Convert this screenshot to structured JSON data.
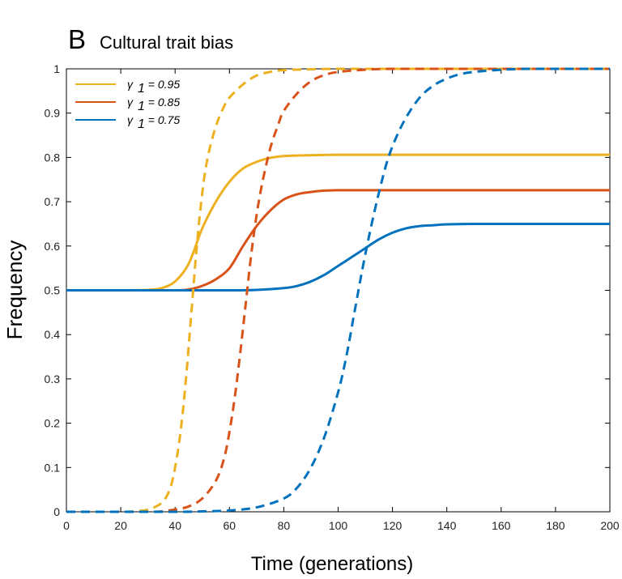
{
  "panel_letter": "B",
  "panel_title": "Cultural trait bias",
  "colors": {
    "gamma_095": "#EDB120",
    "gamma_085": "#D95319",
    "gamma_075": "#0072BD",
    "axes": "#000000",
    "background": "#ffffff"
  },
  "chart_data": {
    "type": "line",
    "title": "Cultural trait bias",
    "xlabel": "Time (generations)",
    "ylabel": "Frequency",
    "xlim": [
      0,
      200
    ],
    "ylim": [
      0,
      1
    ],
    "xticks": [
      0,
      20,
      40,
      60,
      80,
      100,
      120,
      140,
      160,
      180,
      200
    ],
    "yticks": [
      0,
      0.1,
      0.2,
      0.3,
      0.4,
      0.5,
      0.6,
      0.7,
      0.8,
      0.9,
      1
    ],
    "xtick_labels": [
      "0",
      "20",
      "40",
      "60",
      "80",
      "100",
      "120",
      "140",
      "160",
      "180",
      "200"
    ],
    "ytick_labels": [
      "0",
      "0.1",
      "0.2",
      "0.3",
      "0.4",
      "0.5",
      "0.6",
      "0.7",
      "0.8",
      "0.9",
      "1"
    ],
    "grid": false,
    "legend_position": "top-left",
    "legend": [
      {
        "greek": "γ",
        "sub": "1",
        "text": " = 0.95",
        "color_key": "gamma_095"
      },
      {
        "greek": "γ",
        "sub": "1",
        "text": " = 0.85",
        "color_key": "gamma_085"
      },
      {
        "greek": "γ",
        "sub": "1",
        "text": " = 0.75",
        "color_key": "gamma_075"
      }
    ],
    "series": [
      {
        "name": "γ1 = 0.95",
        "style": "solid",
        "color_key": "gamma_095",
        "x": [
          0,
          20,
          30,
          35,
          40,
          45,
          50,
          55,
          60,
          65,
          70,
          75,
          80,
          90,
          100,
          120,
          140,
          160,
          180,
          200
        ],
        "y": [
          0.5,
          0.5,
          0.501,
          0.505,
          0.52,
          0.56,
          0.64,
          0.7,
          0.745,
          0.775,
          0.79,
          0.799,
          0.803,
          0.805,
          0.806,
          0.806,
          0.806,
          0.806,
          0.806,
          0.806
        ]
      },
      {
        "name": "γ1 = 0.85",
        "style": "solid",
        "color_key": "gamma_085",
        "x": [
          0,
          20,
          40,
          45,
          50,
          55,
          60,
          65,
          70,
          75,
          80,
          85,
          90,
          95,
          100,
          110,
          120,
          140,
          160,
          180,
          200
        ],
        "y": [
          0.5,
          0.5,
          0.5,
          0.502,
          0.51,
          0.525,
          0.55,
          0.6,
          0.645,
          0.68,
          0.705,
          0.717,
          0.722,
          0.725,
          0.726,
          0.726,
          0.726,
          0.726,
          0.726,
          0.726,
          0.726
        ]
      },
      {
        "name": "γ1 = 0.75",
        "style": "solid",
        "color_key": "gamma_075",
        "x": [
          0,
          20,
          40,
          60,
          70,
          80,
          85,
          90,
          95,
          100,
          105,
          110,
          115,
          120,
          125,
          130,
          135,
          140,
          150,
          160,
          180,
          200
        ],
        "y": [
          0.5,
          0.5,
          0.5,
          0.5,
          0.501,
          0.505,
          0.51,
          0.52,
          0.535,
          0.555,
          0.575,
          0.595,
          0.615,
          0.63,
          0.64,
          0.645,
          0.647,
          0.649,
          0.65,
          0.65,
          0.65,
          0.65
        ]
      },
      {
        "name": "γ1 = 0.95 (dashed)",
        "style": "dashed",
        "color_key": "gamma_095",
        "x": [
          0,
          20,
          25,
          30,
          35,
          38,
          40,
          42,
          44,
          46,
          48,
          50,
          52,
          55,
          58,
          60,
          65,
          70,
          75,
          80,
          90,
          100,
          120,
          140,
          160,
          180,
          200
        ],
        "y": [
          0,
          0,
          0.001,
          0.005,
          0.02,
          0.05,
          0.1,
          0.18,
          0.3,
          0.45,
          0.6,
          0.72,
          0.8,
          0.87,
          0.915,
          0.935,
          0.965,
          0.985,
          0.993,
          0.997,
          0.999,
          1,
          1,
          1,
          1,
          1,
          1
        ]
      },
      {
        "name": "γ1 = 0.85 (dashed)",
        "style": "dashed",
        "color_key": "gamma_085",
        "x": [
          0,
          30,
          35,
          40,
          45,
          50,
          55,
          58,
          60,
          62,
          64,
          66,
          68,
          70,
          72,
          75,
          78,
          80,
          85,
          90,
          95,
          100,
          110,
          120,
          140,
          160,
          180,
          200
        ],
        "y": [
          0,
          0,
          0.001,
          0.005,
          0.012,
          0.03,
          0.07,
          0.12,
          0.18,
          0.26,
          0.36,
          0.47,
          0.58,
          0.67,
          0.74,
          0.82,
          0.875,
          0.905,
          0.945,
          0.972,
          0.986,
          0.993,
          0.998,
          1,
          1,
          1,
          1,
          1
        ]
      },
      {
        "name": "γ1 = 0.75 (dashed)",
        "style": "dashed",
        "color_key": "gamma_075",
        "x": [
          0,
          40,
          50,
          60,
          70,
          80,
          85,
          90,
          95,
          100,
          103,
          106,
          109,
          112,
          115,
          118,
          121,
          125,
          130,
          135,
          140,
          145,
          150,
          160,
          170,
          180,
          200
        ],
        "y": [
          0,
          0,
          0.001,
          0.003,
          0.01,
          0.03,
          0.055,
          0.1,
          0.17,
          0.27,
          0.35,
          0.45,
          0.55,
          0.64,
          0.72,
          0.79,
          0.84,
          0.89,
          0.935,
          0.962,
          0.978,
          0.988,
          0.993,
          0.998,
          1,
          1,
          1
        ]
      }
    ]
  }
}
